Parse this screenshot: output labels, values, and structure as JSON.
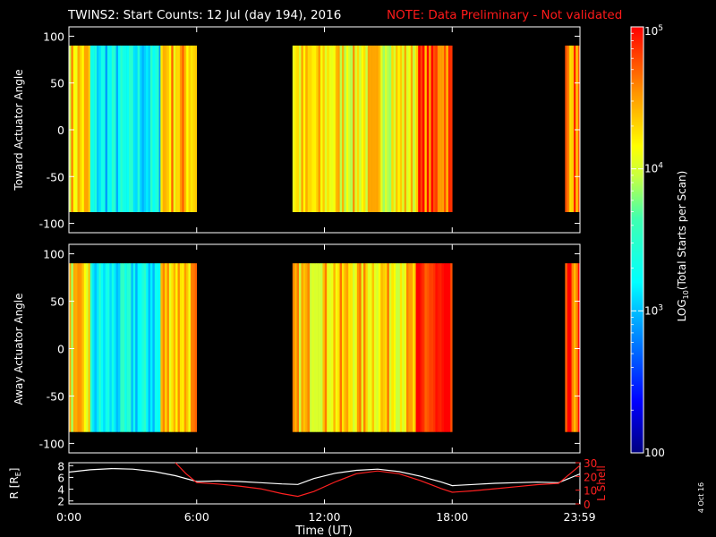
{
  "header": {
    "title": "TWINS2: Start Counts: 12 Jul (day 194), 2016",
    "note": "NOTE: Data Preliminary - Not validated",
    "note_color": "#ff1a1a"
  },
  "stamp": "4 Oct 16",
  "colorbar": {
    "label_prefix": "LOG",
    "label_sub": "10",
    "label_suffix": "(Total Starts per Scan)",
    "tick_labels": [
      "100",
      "10",
      "3",
      "10",
      "4",
      "10",
      "5"
    ],
    "ticks": [
      {
        "base": "100",
        "exp": ""
      },
      {
        "base": "10",
        "exp": "3"
      },
      {
        "base": "10",
        "exp": "4"
      },
      {
        "base": "10",
        "exp": "5"
      }
    ],
    "range_log10": [
      2,
      5
    ]
  },
  "chart_data": [
    {
      "type": "heatmap",
      "panel": "top",
      "ylabel": "Toward Actuator Angle",
      "ylim": [
        -110,
        110
      ],
      "yticks": [
        "100",
        "50",
        "0",
        "-50",
        "-100"
      ],
      "data_angle_range": [
        -88,
        90
      ],
      "xlim_hours": [
        0,
        24
      ],
      "data_intervals_hours": [
        [
          0,
          6.0
        ],
        [
          10.5,
          18.0
        ],
        [
          23.3,
          24
        ]
      ],
      "approx_log10_counts_by_interval": [
        {
          "interval": [
            0,
            1.0
          ],
          "level": 4.3
        },
        {
          "interval": [
            1.0,
            4.3
          ],
          "level": 3.2
        },
        {
          "interval": [
            4.3,
            6.0
          ],
          "level": 4.4
        },
        {
          "interval": [
            10.5,
            16.3
          ],
          "level": 4.2
        },
        {
          "interval": [
            16.3,
            18.0
          ],
          "level": 4.7
        },
        {
          "interval": [
            23.3,
            24
          ],
          "level": 4.6
        }
      ]
    },
    {
      "type": "heatmap",
      "panel": "middle",
      "ylabel": "Away Actuator Angle",
      "ylim": [
        -110,
        110
      ],
      "yticks": [
        "100",
        "50",
        "0",
        "-50",
        "-100"
      ],
      "data_angle_range": [
        -88,
        90
      ],
      "xlim_hours": [
        0,
        24
      ],
      "data_intervals_hours": [
        [
          0,
          6.0
        ],
        [
          10.5,
          18.0
        ],
        [
          23.3,
          24
        ]
      ],
      "approx_log10_counts_by_interval": [
        {
          "interval": [
            0,
            1.0
          ],
          "level": 4.2
        },
        {
          "interval": [
            1.0,
            4.3
          ],
          "level": 3.2
        },
        {
          "interval": [
            4.3,
            6.0
          ],
          "level": 4.4
        },
        {
          "interval": [
            10.5,
            16.3
          ],
          "level": 4.3
        },
        {
          "interval": [
            16.3,
            18.0
          ],
          "level": 4.8
        },
        {
          "interval": [
            23.3,
            24
          ],
          "level": 4.7
        }
      ]
    },
    {
      "type": "line",
      "panel": "bottom",
      "ylabel_left": "R [R",
      "ylabel_left_sub": "E",
      "ylabel_left_end": "]",
      "ylabel_right": "L Shell",
      "left_ylim": [
        1.5,
        8.5
      ],
      "left_yticks": [
        "8",
        "6",
        "4",
        "2"
      ],
      "right_ylim": [
        0,
        30
      ],
      "right_yticks": [
        "30",
        "20",
        "10",
        "0"
      ],
      "right_color": "#ff2020",
      "xlabel": "Time (UT)",
      "xlim_hours": [
        0,
        24
      ],
      "xticks": [
        {
          "label": "0:00",
          "hour": 0
        },
        {
          "label": "6:00",
          "hour": 6
        },
        {
          "label": "12:00",
          "hour": 12
        },
        {
          "label": "18:00",
          "hour": 18
        },
        {
          "label": "23:59",
          "hour": 23.98
        }
      ],
      "series": [
        {
          "name": "R",
          "axis": "left",
          "color": "#ffffff",
          "x": [
            0,
            1,
            2,
            3,
            4,
            5,
            6,
            7,
            8,
            9,
            10,
            10.75,
            11.5,
            12.5,
            13.5,
            14.5,
            15.5,
            16.5,
            17.5,
            18,
            19,
            20,
            21,
            22,
            23,
            24
          ],
          "y": [
            6.9,
            7.3,
            7.5,
            7.4,
            7.0,
            6.3,
            5.3,
            5.4,
            5.3,
            5.1,
            4.9,
            4.8,
            5.8,
            6.7,
            7.2,
            7.4,
            7.0,
            6.2,
            5.2,
            4.6,
            4.8,
            5.0,
            5.1,
            5.2,
            5.1,
            6.6
          ]
        },
        {
          "name": "L Shell",
          "axis": "right",
          "color": "#ff2020",
          "x": [
            5.0,
            5.5,
            6.0,
            7,
            8,
            9,
            10,
            10.75,
            11.5,
            12.5,
            13.5,
            14.5,
            15.5,
            16.5,
            17.5,
            18,
            19,
            20,
            21,
            22,
            23,
            24
          ],
          "y": [
            30,
            22,
            15.5,
            14.5,
            13,
            11,
            7.5,
            5.5,
            9,
            16,
            22,
            24,
            22,
            17,
            11,
            8.5,
            9.5,
            11,
            12.5,
            14,
            15,
            28
          ]
        }
      ]
    }
  ]
}
